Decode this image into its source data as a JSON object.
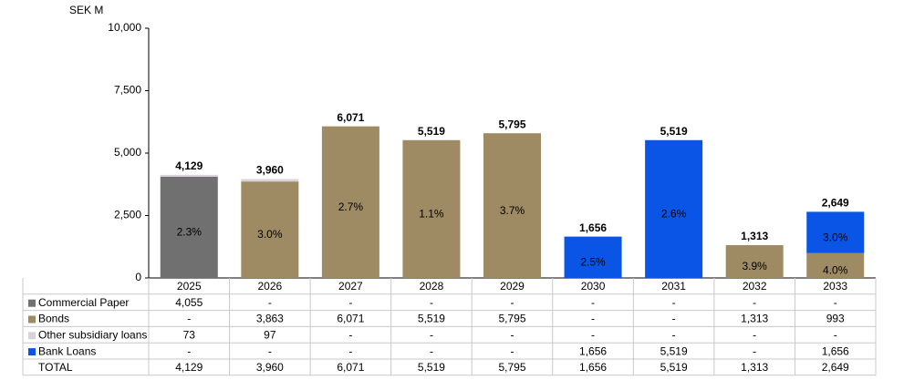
{
  "chart_data": {
    "type": "stacked_bar",
    "y_unit_label": "SEK M",
    "categories": [
      "2025",
      "2026",
      "2027",
      "2028",
      "2029",
      "2030",
      "2031",
      "2032",
      "2033"
    ],
    "ylim": [
      0,
      10000
    ],
    "yticks": [
      0,
      {
        "value": 2500,
        "label": "2,500"
      },
      {
        "value": 5000,
        "label": "5,000"
      },
      {
        "value": 7500,
        "label": "7,500"
      },
      {
        "value": 10000,
        "label": "10,000"
      }
    ],
    "grid": false,
    "series": [
      {
        "name": "Commercial Paper",
        "color": "#707070",
        "values": [
          4055,
          null,
          null,
          null,
          null,
          null,
          null,
          null,
          null
        ],
        "value_labels": [
          "4,055",
          "-",
          "-",
          "-",
          "-",
          "-",
          "-",
          "-",
          "-"
        ],
        "rate_labels": [
          "2.3%",
          null,
          null,
          null,
          null,
          null,
          null,
          null,
          null
        ]
      },
      {
        "name": "Bonds",
        "color": "#9e8a63",
        "values": [
          null,
          3863,
          6071,
          5519,
          5795,
          null,
          null,
          1313,
          993
        ],
        "value_labels": [
          "-",
          "3,863",
          "6,071",
          "5,519",
          "5,795",
          "-",
          "-",
          "1,313",
          "993"
        ],
        "rate_labels": [
          null,
          "3.0%",
          "2.7%",
          "1.1%",
          "3.7%",
          null,
          null,
          "3.9%",
          "4.0%"
        ]
      },
      {
        "name": "Other subsidiary loans",
        "color": "#d9d2da",
        "values": [
          73,
          97,
          null,
          null,
          null,
          null,
          null,
          null,
          null
        ],
        "value_labels": [
          "73",
          "97",
          "-",
          "-",
          "-",
          "-",
          "-",
          "-",
          "-"
        ],
        "rate_labels": [
          null,
          null,
          null,
          null,
          null,
          null,
          null,
          null,
          null
        ]
      },
      {
        "name": "Bank Loans",
        "color": "#0a55e6",
        "values": [
          null,
          null,
          null,
          null,
          null,
          1656,
          5519,
          null,
          1656
        ],
        "value_labels": [
          "-",
          "-",
          "-",
          "-",
          "-",
          "1,656",
          "5,519",
          "-",
          "1,656"
        ],
        "rate_labels": [
          null,
          null,
          null,
          null,
          null,
          "2.5%",
          "2.6%",
          null,
          "3.0%"
        ]
      }
    ],
    "totals": {
      "name": "TOTAL",
      "values": [
        4129,
        3960,
        6071,
        5519,
        5795,
        1656,
        5519,
        1313,
        2649
      ],
      "value_labels": [
        "4,129",
        "3,960",
        "6,071",
        "5,519",
        "5,795",
        "1,656",
        "5,519",
        "1,313",
        "2,649"
      ]
    }
  }
}
